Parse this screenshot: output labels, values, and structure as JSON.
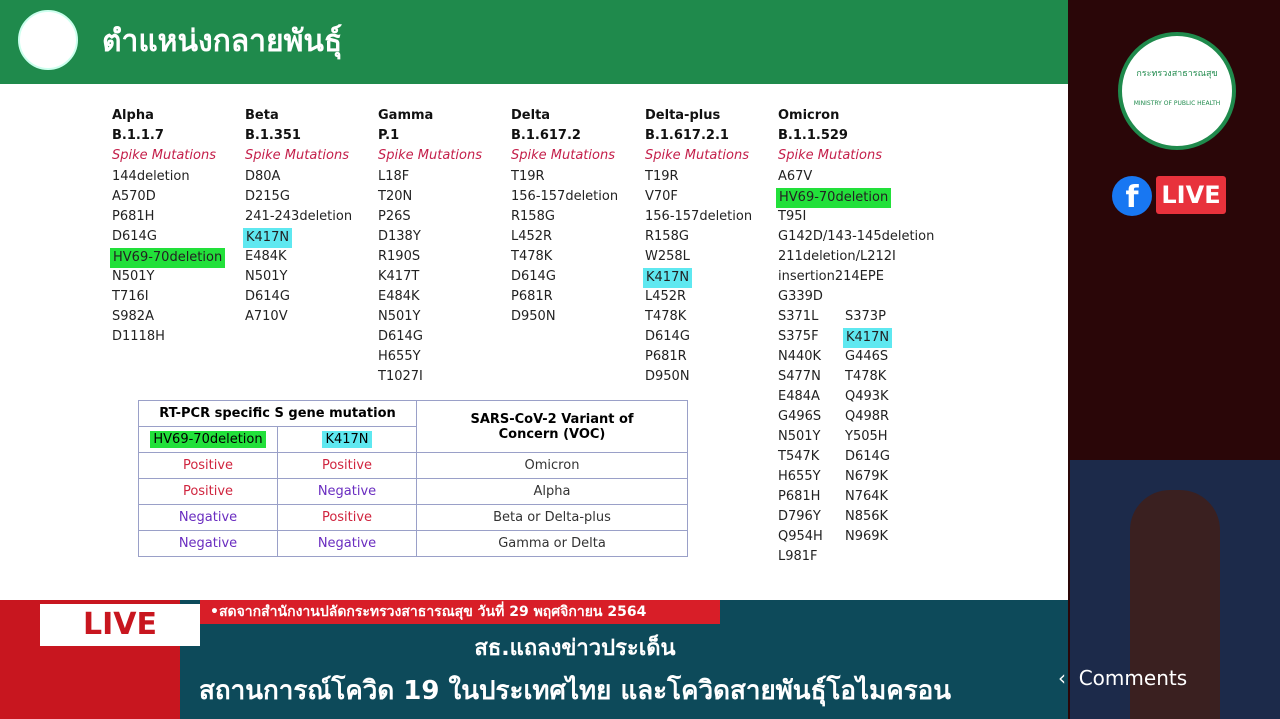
{
  "slide": {
    "title": "ตำแหน่งกลายพันธุ์",
    "variants": [
      {
        "name": "Alpha",
        "lineage": "B.1.1.7",
        "label": "Spike Mutations",
        "mutations": [
          "144deletion",
          "A570D",
          "P681H",
          "D614G",
          {
            "text": "HV69-70deletion",
            "highlight": "#22e03a"
          },
          "N501Y",
          "T716I",
          "S982A",
          "D1118H"
        ]
      },
      {
        "name": "Beta",
        "lineage": "B.1.351",
        "label": "Spike Mutations",
        "mutations": [
          "D80A",
          "D215G",
          "241-243deletion",
          {
            "text": "K417N",
            "highlight": "#5ee8f0"
          },
          "E484K",
          "N501Y",
          "D614G",
          "A710V"
        ]
      },
      {
        "name": "Gamma",
        "lineage": "P.1",
        "label": "Spike Mutations",
        "mutations": [
          "L18F",
          "T20N",
          "P26S",
          "D138Y",
          "R190S",
          "K417T",
          "E484K",
          "N501Y",
          "D614G",
          "H655Y",
          "T1027I"
        ]
      },
      {
        "name": "Delta",
        "lineage": "B.1.617.2",
        "label": "Spike Mutations",
        "mutations": [
          "T19R",
          "156-157deletion",
          "R158G",
          "L452R",
          "T478K",
          "D614G",
          "P681R",
          "D950N"
        ]
      },
      {
        "name": "Delta-plus",
        "lineage": "B.1.617.2.1",
        "label": "Spike Mutations",
        "mutations": [
          "T19R",
          "V70F",
          "156-157deletion",
          "R158G",
          "W258L",
          {
            "text": "K417N",
            "highlight": "#5ee8f0"
          },
          "L452R",
          "T478K",
          "D614G",
          "P681R",
          "D950N"
        ]
      },
      {
        "name": "Omicron",
        "lineage": "B.1.1.529",
        "label": "Spike Mutations",
        "mutations": [
          "A67V",
          {
            "text": "HV69-70deletion",
            "highlight": "#22e03a"
          },
          "T95I",
          "G142D/143-145deletion",
          "211deletion/L212I",
          "insertion214EPE",
          "G339D",
          "S371L",
          "S373P",
          "S375F",
          {
            "text": "K417N",
            "highlight": "#5ee8f0"
          },
          "N440K",
          "G446S",
          "S477N",
          "T478K",
          "E484A",
          "Q493K",
          "G496S",
          "Q498R",
          "N501Y",
          "Y505H",
          "T547K",
          "D614G",
          "H655Y",
          "N679K",
          "P681H",
          "N764K",
          "D796Y",
          "N856K",
          "Q954H",
          "N969K",
          "L981F"
        ]
      }
    ],
    "table": {
      "header": "RT-PCR specific S gene mutation",
      "voc_header": "SARS-CoV-2 Variant of Concern (VOC)",
      "columns": [
        {
          "text": "HV69-70deletion",
          "highlight": "#22e03a"
        },
        {
          "text": "K417N",
          "highlight": "#5ee8f0"
        }
      ],
      "result_colors": {
        "Positive": "#d0253f",
        "Negative": "#6a2dc0"
      },
      "rows": [
        [
          "Positive",
          "Positive",
          "Omicron"
        ],
        [
          "Positive",
          "Negative",
          "Alpha"
        ],
        [
          "Negative",
          "Positive",
          "Beta or Delta-plus"
        ],
        [
          "Negative",
          "Negative",
          "Gamma or Delta"
        ]
      ]
    }
  },
  "side": {
    "logo_text": "กระทรวงสาธารณสุข",
    "logo_subtext": "MINISTRY OF PUBLIC HEALTH",
    "live_badge": "LIVE"
  },
  "banner": {
    "live": "LIVE",
    "ticker": "•สดจากสำนักงานปลัดกระทรวงสาธารณสุข วันที่ 29 พฤศจิกายน 2564",
    "headline": "สธ.แถลงข่าวประเด็น",
    "subheadline": "สถานการณ์โควิด 19 ในประเทศไทย และโควิดสายพันธุ์โอไมครอน"
  },
  "overlay": {
    "comments": "Comments"
  }
}
